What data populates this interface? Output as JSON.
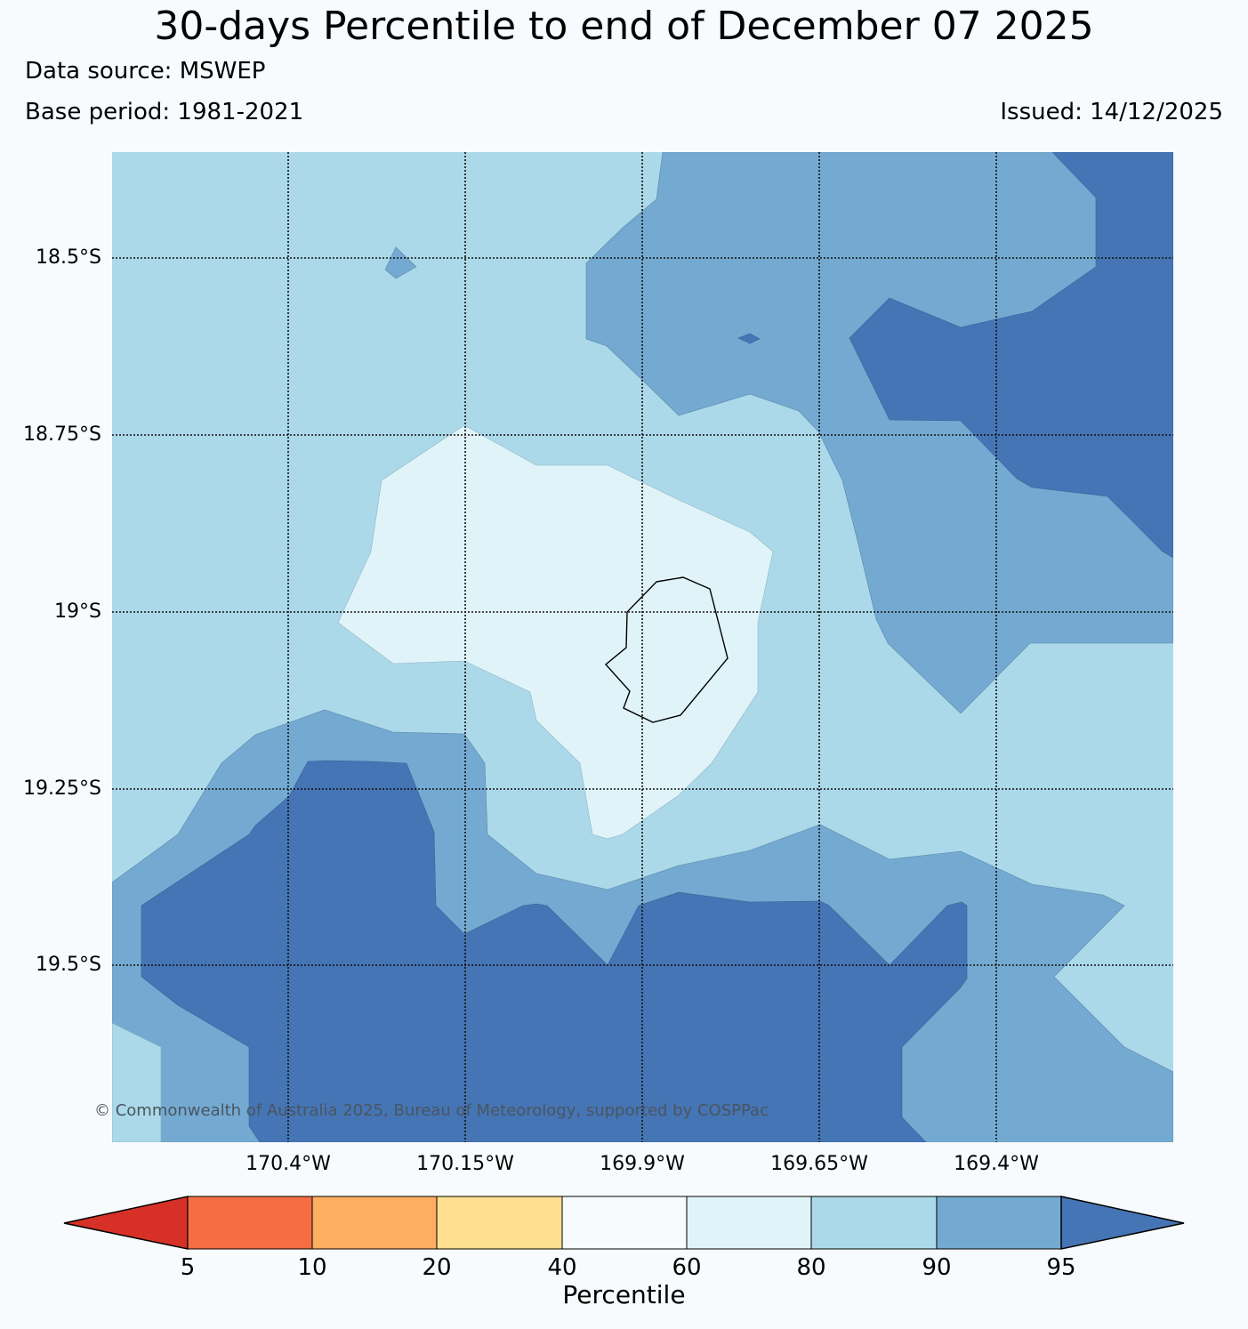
{
  "title": "30-days Percentile to end of December 07 2025",
  "data_source": "Data source: MSWEP",
  "base_period": "Base period: 1981-2021",
  "issued": "Issued: 14/12/2025",
  "copyright": "© Commonwealth of Australia 2025, Bureau of Meteorology, supported by COSPPac",
  "map": {
    "lat_labels": [
      "18.5°S",
      "18.75°S",
      "19°S",
      "19.25°S",
      "19.5°S"
    ],
    "lon_labels": [
      "170.4°W",
      "170.15°W",
      "169.9°W",
      "169.65°W",
      "169.4°W"
    ],
    "regions": [
      {
        "class": "90-95",
        "color": "#74aad1"
      },
      {
        "class": ">95",
        "color": "#4575b4"
      },
      {
        "class": "80-90",
        "color": "#abd9e9"
      },
      {
        "class": "60-80",
        "color": "#e0f3f8"
      }
    ]
  },
  "colorbar": {
    "label": "Percentile",
    "ticks": [
      "5",
      "10",
      "20",
      "40",
      "60",
      "80",
      "90",
      "95"
    ],
    "under_color": "#d73027",
    "over_color": "#4575b4",
    "bins": [
      {
        "range": "5-10",
        "color": "#f46d43"
      },
      {
        "range": "10-20",
        "color": "#fdae61"
      },
      {
        "range": "20-40",
        "color": "#fee090"
      },
      {
        "range": "40-60",
        "color": "#f7fbfd"
      },
      {
        "range": "60-80",
        "color": "#e0f3f8"
      },
      {
        "range": "80-90",
        "color": "#abd9e9"
      },
      {
        "range": "90-95",
        "color": "#74aad1"
      }
    ]
  }
}
